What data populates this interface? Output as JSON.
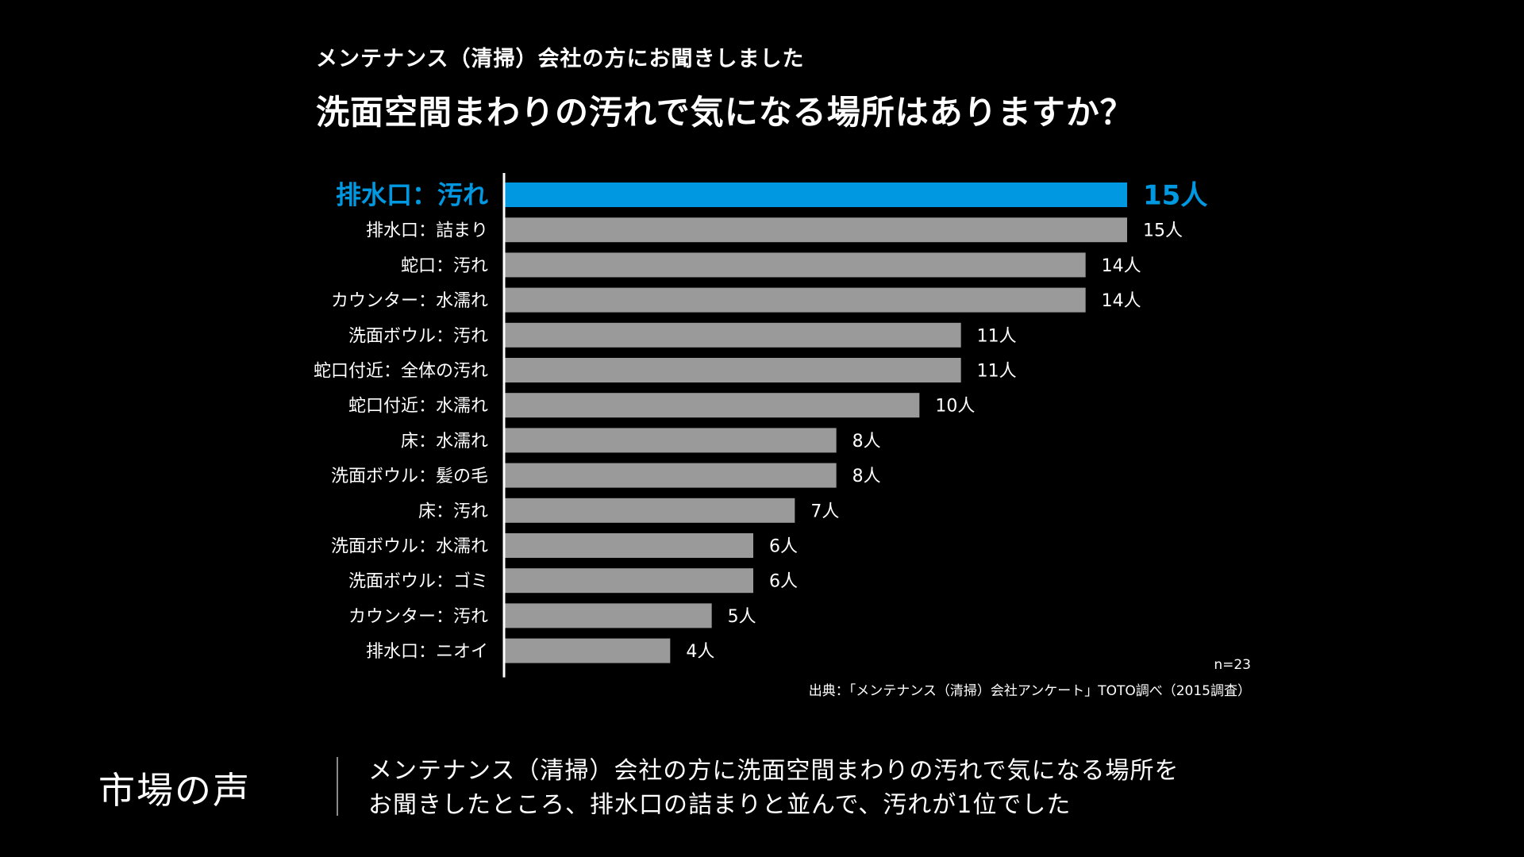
{
  "header": {
    "subtitle": "メンテナンス（清掃）会社の方にお聞きしました",
    "title": "洗面空間まわりの汚れで気になる場所はありますか？"
  },
  "colors": {
    "background": "#000000",
    "bar_default": "#9a9a9a",
    "bar_highlight": "#0098e0",
    "text": "#ffffff",
    "highlight_text": "#0098e0"
  },
  "chart_data": {
    "type": "bar",
    "orientation": "horizontal",
    "title": "洗面空間まわりの汚れで気になる場所はありますか？",
    "categories": [
      "排水口：汚れ",
      "排水口：詰まり",
      "蛇口：汚れ",
      "カウンター：水濡れ",
      "洗面ボウル：汚れ",
      "蛇口付近：全体の汚れ",
      "蛇口付近：水濡れ",
      "床：水濡れ",
      "洗面ボウル：髪の毛",
      "床：汚れ",
      "洗面ボウル：水濡れ",
      "洗面ボウル：ゴミ",
      "カウンター：汚れ",
      "排水口：ニオイ"
    ],
    "values": [
      15,
      15,
      14,
      14,
      11,
      11,
      10,
      8,
      8,
      7,
      6,
      6,
      5,
      4
    ],
    "value_labels": [
      "15人",
      "15人",
      "14人",
      "14人",
      "11人",
      "11人",
      "10人",
      "8人",
      "8人",
      "7人",
      "6人",
      "6人",
      "5人",
      "4人"
    ],
    "highlight_index": 0,
    "xlim": [
      0,
      15
    ],
    "grid": false,
    "legend": "none"
  },
  "notes": {
    "sample_size": "n=23",
    "source": "出典：「メンテナンス（清掃）会社アンケート」TOTO調べ（2015調査）"
  },
  "footer": {
    "label": "市場の声",
    "line1": "メンテナンス（清掃）会社の方に洗面空間まわりの汚れで気になる場所を",
    "line2": "お聞きしたところ、排水口の詰まりと並んで、汚れが1位でした"
  }
}
